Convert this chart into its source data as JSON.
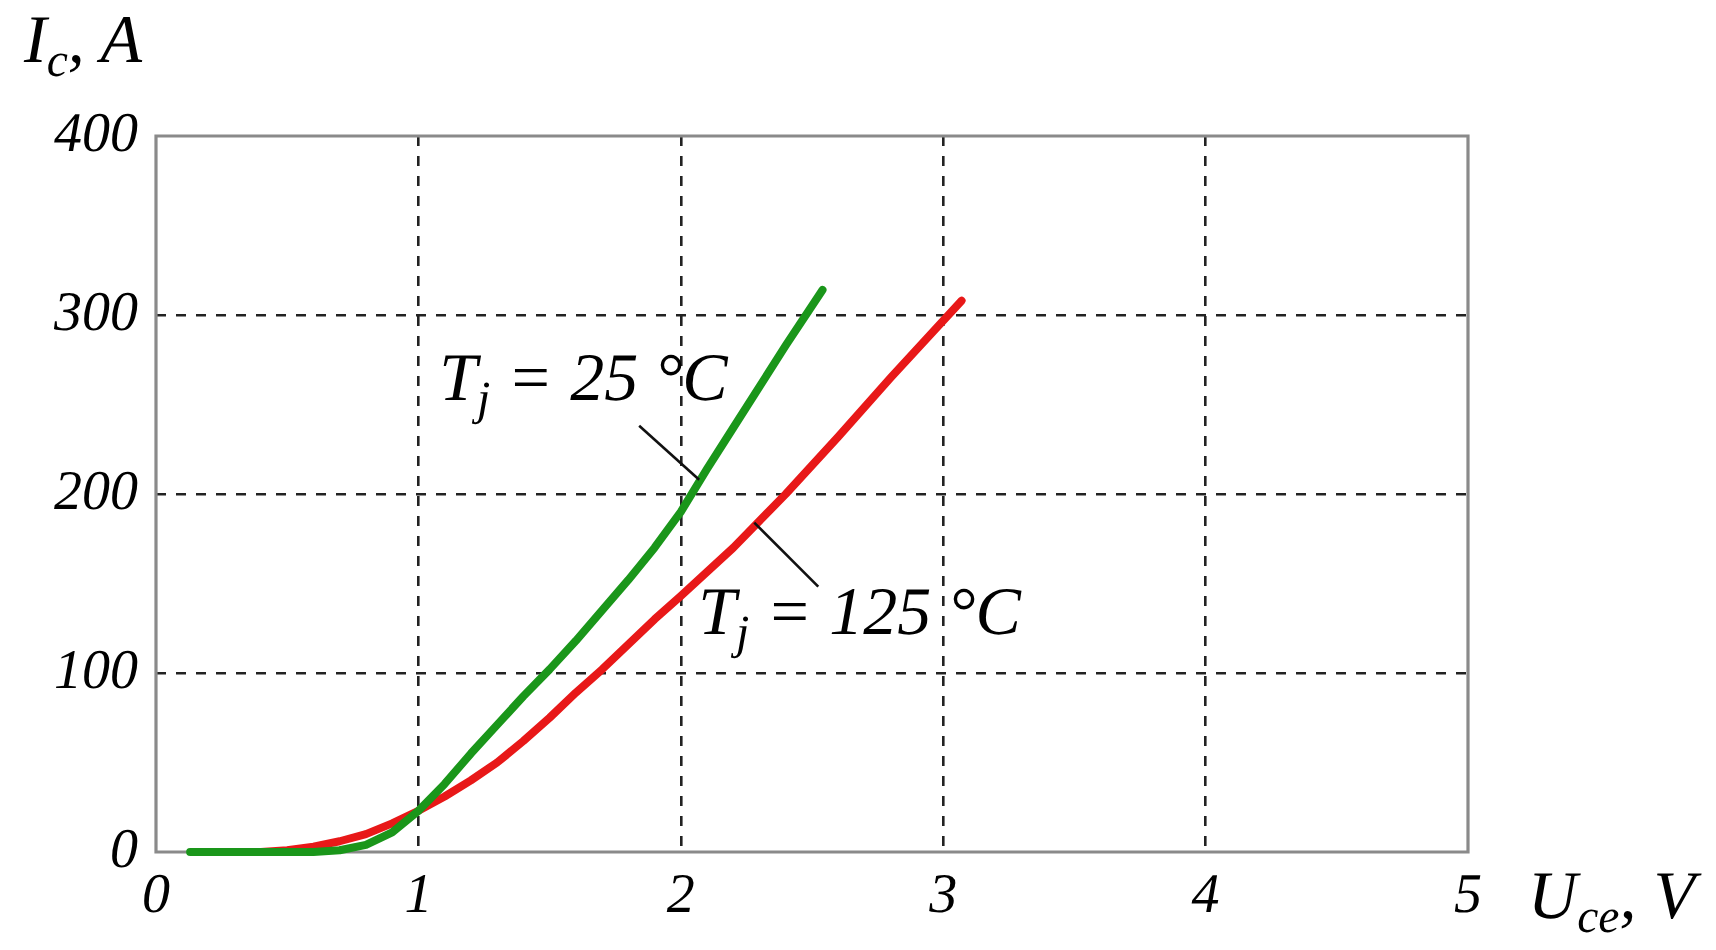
{
  "chart_data": {
    "type": "line",
    "xlabel": "U$_{ce}$, V",
    "ylabel": "I$_{c}$, A",
    "xlim": [
      0,
      5
    ],
    "xticks": [
      0,
      1,
      2,
      3,
      4,
      5
    ],
    "ylim": [
      0,
      400
    ],
    "yticks": [
      0,
      100,
      200,
      300,
      400
    ],
    "grid": true,
    "series": [
      {
        "color": "#1a961a",
        "x": [
          0.13,
          0.3,
          0.5,
          0.6,
          0.7,
          0.8,
          0.9,
          1.0,
          1.1,
          1.2,
          1.3,
          1.4,
          1.5,
          1.6,
          1.7,
          1.8,
          1.9,
          2.0,
          2.1,
          2.2,
          2.3,
          2.4,
          2.54
        ],
        "values": [
          0,
          0,
          0,
          0,
          1,
          4,
          11,
          23,
          38,
          55,
          71,
          87,
          102,
          118,
          135,
          152,
          170,
          190,
          214,
          237,
          260,
          283,
          314
        ]
      },
      {
        "color": "#e81818",
        "x": [
          0.4,
          0.5,
          0.6,
          0.7,
          0.8,
          0.9,
          1.0,
          1.1,
          1.2,
          1.3,
          1.4,
          1.5,
          1.6,
          1.7,
          1.8,
          1.9,
          2.0,
          2.2,
          2.4,
          2.6,
          2.8,
          3.07
        ],
        "values": [
          0,
          1,
          3,
          6,
          10,
          16,
          23,
          31,
          40,
          50,
          62,
          75,
          89,
          102,
          116,
          130,
          143,
          170,
          200,
          232,
          265,
          308
        ]
      }
    ],
    "annotations": [
      {
        "text": "T$_{j}$ = 25 °C",
        "x": 2.07,
        "y": 208
      },
      {
        "text": "T$_{j}$ = 125 °C",
        "x": 2.28,
        "y": 184
      }
    ]
  }
}
